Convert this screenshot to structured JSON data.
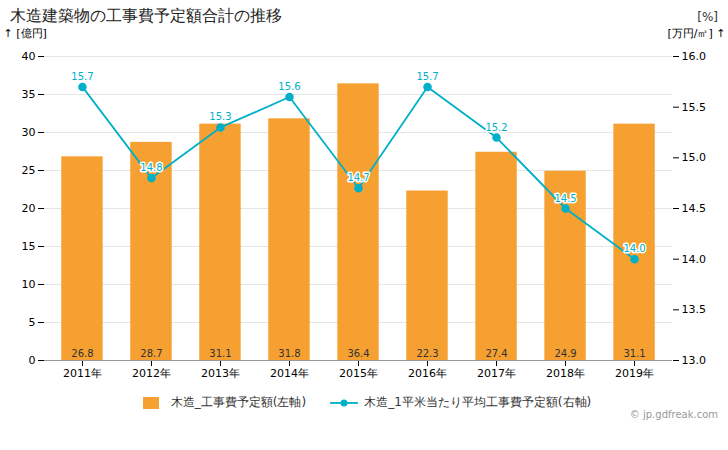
{
  "chart_data": {
    "type": "bar",
    "title": "木造建築物の工事費予定額合計の推移",
    "categories": [
      "2011年",
      "2012年",
      "2013年",
      "2014年",
      "2015年",
      "2016年",
      "2017年",
      "2018年",
      "2019年"
    ],
    "series": [
      {
        "name": "木造_工事費予定額(左軸)",
        "type": "bar",
        "color": "#f5a030",
        "values": [
          26.8,
          28.7,
          31.1,
          31.8,
          36.4,
          22.3,
          27.4,
          24.9,
          31.1
        ]
      },
      {
        "name": "木造_1平米当たり平均工事費予定額(右軸)",
        "type": "line",
        "axis": "y2",
        "color": "#00b0c8",
        "marker": "circle",
        "line_style": "solid",
        "values": [
          15.7,
          14.8,
          15.3,
          15.6,
          14.7,
          15.7,
          15.2,
          14.5,
          14.0
        ],
        "value_labels": [
          "15.7",
          "14.8",
          "15.3",
          "15.6",
          "14.7",
          "15.7",
          "15.2",
          "14.5",
          "14.0"
        ]
      }
    ],
    "ylabel": "[億円]",
    "y2label": "[万円/㎡]",
    "ylim": [
      0,
      40
    ],
    "yticks": [
      0,
      5,
      10,
      15,
      20,
      25,
      30,
      35,
      40
    ],
    "y2lim": [
      13.0,
      16.0
    ],
    "y2ticks": [
      {
        "value": 13,
        "label": "13.0"
      },
      13.5,
      {
        "value": 14,
        "label": "14.0"
      },
      14.5,
      {
        "value": 15,
        "label": "15.0"
      },
      15.5,
      {
        "value": 16,
        "label": "16.0"
      }
    ],
    "annotations": [
      "[%]",
      "© jp.gdfreak.com"
    ],
    "grid": true,
    "data_labels": true,
    "legend": "bottom"
  }
}
